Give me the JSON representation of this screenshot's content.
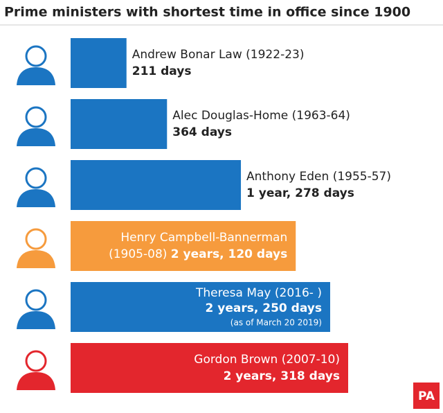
{
  "chart_data": {
    "type": "bar",
    "orientation": "horizontal",
    "title": "Prime ministers with shortest time in office since 1900",
    "categories": [
      "Andrew Bonar Law",
      "Alec Douglas-Home",
      "Anthony Eden",
      "Henry Campbell-Bannerman",
      "Theresa May",
      "Gordon Brown"
    ],
    "dates": [
      "(1922-23)",
      "(1963-64)",
      "(1955-57)",
      "(1905-08)",
      "(2016- )",
      "(2007-10)"
    ],
    "values": [
      211,
      364,
      643,
      850,
      980,
      1048
    ],
    "value_labels": [
      "211 days",
      "364 days",
      "1 year, 278 days",
      "2 years, 120 days",
      "2 years, 250 days",
      "2 years, 318 days"
    ],
    "notes": [
      null,
      null,
      null,
      null,
      "(as of March 20 2019)",
      null
    ],
    "colors": [
      "#1b75c2",
      "#1b75c2",
      "#1b75c2",
      "#f69b3d",
      "#1b75c2",
      "#e3262d"
    ],
    "source_logo": "PA"
  }
}
